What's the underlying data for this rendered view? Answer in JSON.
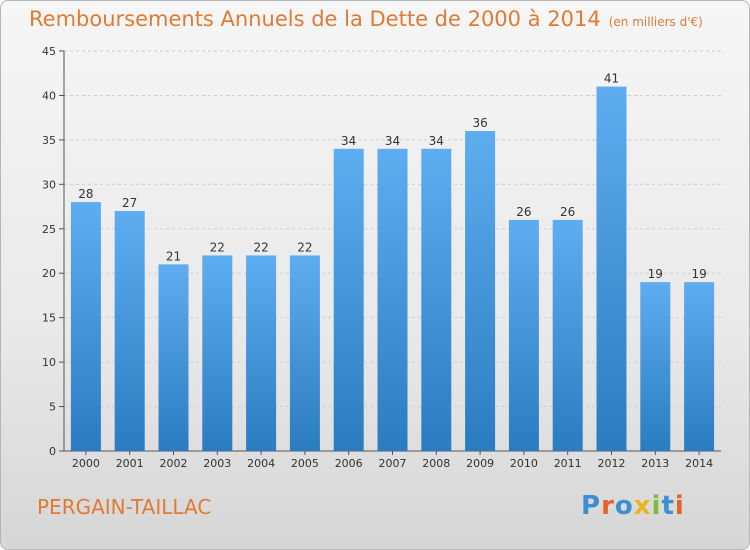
{
  "header": {
    "title": "Remboursements Annuels de la Dette de 2000 à 2014",
    "unit": "(en milliers d'€)"
  },
  "footer": {
    "town": "PERGAIN-TAILLAC",
    "logo_text": "Proxiti",
    "logo_letters": [
      "P",
      "r",
      "o",
      "x",
      "i",
      "t",
      "i"
    ],
    "logo_colors": [
      "#3c8fd0",
      "#e5622a",
      "#3c8fd0",
      "#e8b51e",
      "#7bbd3a",
      "#3c8fd0",
      "#e5622a"
    ]
  },
  "colors": {
    "accent": "#e07a35",
    "bar_top": "#5eadf0",
    "bar_bottom": "#2a7cc0",
    "grid": "#d0d0d0"
  },
  "chart_data": {
    "type": "bar",
    "title": "Remboursements Annuels de la Dette de 2000 à 2014",
    "subtitle": "(en milliers d'€)",
    "categories": [
      "2000",
      "2001",
      "2002",
      "2003",
      "2004",
      "2005",
      "2006",
      "2007",
      "2008",
      "2009",
      "2010",
      "2011",
      "2012",
      "2013",
      "2014"
    ],
    "values": [
      28,
      27,
      21,
      22,
      22,
      22,
      34,
      34,
      34,
      36,
      26,
      26,
      41,
      19,
      19
    ],
    "ylim": [
      0,
      45
    ],
    "yticks": [
      0,
      5,
      10,
      15,
      20,
      25,
      30,
      35,
      40,
      45
    ],
    "grid": true,
    "legend": "none"
  }
}
